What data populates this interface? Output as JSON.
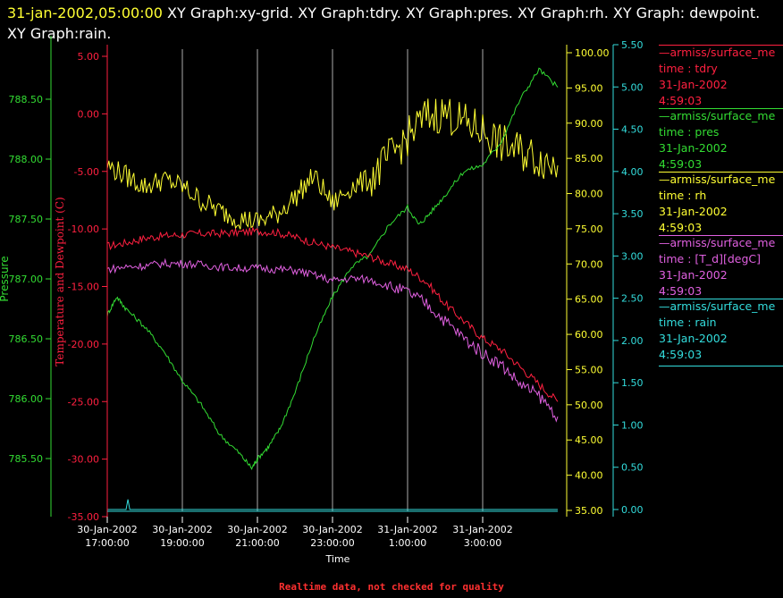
{
  "title": {
    "date": "31-jan-2002,05:00:00",
    "text": " XY Graph:xy-grid.  XY Graph:tdry.  XY Graph:pres.  XY Graph:rh.  XY Graph: dewpoint.  XY Graph:rain."
  },
  "footer": "Realtime data, not checked for quality",
  "colors": {
    "tdry": "#ff2040",
    "pres": "#33dd33",
    "rh": "#ffff33",
    "dew": "#e060e0",
    "rain": "#33dddd",
    "grid": "#ffffff",
    "bg": "#000000"
  },
  "legend": [
    {
      "source": "—armiss/surface_me",
      "label": "time : tdry",
      "date": "31-Jan-2002",
      "time": "4:59:03",
      "color": "#ff2040"
    },
    {
      "source": "—armiss/surface_me",
      "label": "time : pres",
      "date": "31-Jan-2002",
      "time": "4:59:03",
      "color": "#33dd33"
    },
    {
      "source": "—armiss/surface_me",
      "label": "time : rh",
      "date": "31-Jan-2002",
      "time": "4:59:03",
      "color": "#ffff33"
    },
    {
      "source": "—armiss/surface_me",
      "label": "time : [T_d][degC]",
      "date": "31-Jan-2002",
      "time": "4:59:03",
      "color": "#e060e0"
    },
    {
      "source": "—armiss/surface_me",
      "label": "time : rain",
      "date": "31-Jan-2002",
      "time": "4:59:03",
      "color": "#33dddd"
    }
  ],
  "chart_data": {
    "type": "line",
    "xlabel": "Time",
    "xticks": [
      {
        "date": "30-Jan-2002",
        "time": "17:00:00"
      },
      {
        "date": "30-Jan-2002",
        "time": "19:00:00"
      },
      {
        "date": "30-Jan-2002",
        "time": "21:00:00"
      },
      {
        "date": "30-Jan-2002",
        "time": "23:00:00"
      },
      {
        "date": "31-Jan-2002",
        "time": "1:00:00"
      },
      {
        "date": "31-Jan-2002",
        "time": "3:00:00"
      }
    ],
    "x_hours_range": [
      17,
      29
    ],
    "grid": "vertical",
    "axes": {
      "temp": {
        "label": "Temperature and Dewpoint (C)",
        "range": [
          -35,
          6.5
        ],
        "ticks": [
          "5.00",
          "0.00",
          "-5.00",
          "-10.00",
          "-15.00",
          "-20.00",
          "-25.00",
          "-30.00",
          "-35.00"
        ]
      },
      "pres": {
        "label": "Pressure",
        "range": [
          785.25,
          788.85
        ],
        "ticks": [
          "788.50",
          "788.00",
          "787.50",
          "787.00",
          "786.50",
          "786.00",
          "785.50"
        ]
      },
      "rh": {
        "range": [
          35,
          101
        ],
        "ticks": [
          "100.00",
          "95.00",
          "90.00",
          "85.00",
          "80.00",
          "75.00",
          "70.00",
          "65.00",
          "60.00",
          "55.00",
          "50.00",
          "45.00",
          "40.00",
          "35.00"
        ]
      },
      "rain": {
        "range": [
          -0.05,
          5.5
        ],
        "ticks": [
          "5.50",
          "5.00",
          "4.50",
          "4.00",
          "3.50",
          "3.00",
          "2.50",
          "2.00",
          "1.50",
          "1.00",
          "0.50",
          "0.00"
        ]
      }
    },
    "series": [
      {
        "name": "time : tdry",
        "axis": "temp",
        "x": [
          17.0,
          17.5,
          18.0,
          18.5,
          19.0,
          19.5,
          20.0,
          20.5,
          21.0,
          21.5,
          22.0,
          22.5,
          23.0,
          23.5,
          24.0,
          24.5,
          25.0,
          25.5,
          26.0,
          26.5,
          27.0,
          27.5,
          28.0,
          28.5,
          29.0
        ],
        "y": [
          -11.5,
          -11.2,
          -10.8,
          -10.6,
          -10.5,
          -10.4,
          -10.4,
          -10.3,
          -10.2,
          -10.3,
          -10.7,
          -11.2,
          -11.6,
          -12.0,
          -12.4,
          -13.0,
          -13.5,
          -14.6,
          -16.5,
          -18.0,
          -19.5,
          -20.5,
          -22.0,
          -23.5,
          -25.0
        ]
      },
      {
        "name": "time : pres",
        "axis": "pres",
        "x": [
          17.0,
          17.25,
          17.5,
          18.0,
          18.5,
          19.0,
          19.5,
          20.0,
          20.5,
          20.85,
          21.0,
          21.3,
          21.6,
          22.0,
          22.5,
          23.0,
          23.5,
          24.0,
          24.5,
          25.0,
          25.3,
          25.6,
          26.0,
          26.5,
          27.0,
          27.5,
          28.0,
          28.5,
          29.0
        ],
        "y": [
          786.7,
          786.85,
          786.75,
          786.6,
          786.4,
          786.15,
          785.95,
          785.7,
          785.55,
          785.42,
          785.5,
          785.6,
          785.75,
          786.05,
          786.5,
          786.85,
          787.1,
          787.2,
          787.45,
          787.6,
          787.45,
          787.55,
          787.7,
          787.9,
          787.95,
          788.15,
          788.5,
          788.75,
          788.6
        ]
      },
      {
        "name": "time : rh",
        "axis": "rh",
        "x": [
          17.0,
          17.5,
          18.0,
          18.5,
          19.0,
          19.5,
          20.0,
          20.5,
          21.0,
          21.5,
          22.0,
          22.5,
          23.0,
          23.5,
          24.0,
          24.5,
          25.0,
          25.5,
          26.0,
          26.5,
          27.0,
          27.5,
          28.0,
          28.5,
          29.0
        ],
        "y": [
          84.0,
          82.5,
          81.0,
          82.0,
          81.0,
          79.0,
          77.5,
          76.5,
          76.0,
          77.0,
          79.5,
          82.5,
          78.5,
          81.0,
          82.0,
          85.0,
          88.0,
          91.0,
          91.5,
          90.0,
          89.0,
          87.0,
          86.0,
          85.0,
          84.0
        ]
      },
      {
        "name": "time : [T_d][degC]",
        "axis": "temp",
        "x": [
          17.0,
          17.5,
          18.0,
          18.5,
          19.0,
          19.5,
          20.0,
          20.5,
          21.0,
          21.5,
          22.0,
          22.5,
          23.0,
          23.5,
          24.0,
          24.5,
          25.0,
          25.5,
          26.0,
          26.5,
          27.0,
          27.5,
          28.0,
          28.5,
          29.0
        ],
        "y": [
          -13.5,
          -13.3,
          -13.2,
          -13.0,
          -13.0,
          -13.1,
          -13.3,
          -13.4,
          -13.4,
          -13.5,
          -13.6,
          -14.0,
          -14.5,
          -14.3,
          -14.4,
          -15.0,
          -15.5,
          -16.5,
          -18.0,
          -19.5,
          -20.8,
          -21.8,
          -23.5,
          -24.5,
          -26.3
        ]
      },
      {
        "name": "time : rain",
        "axis": "rain",
        "x": [
          17.0,
          17.5,
          17.55,
          17.6,
          29.0
        ],
        "y": [
          0.0,
          0.0,
          0.12,
          0.0,
          0.0
        ]
      }
    ]
  }
}
